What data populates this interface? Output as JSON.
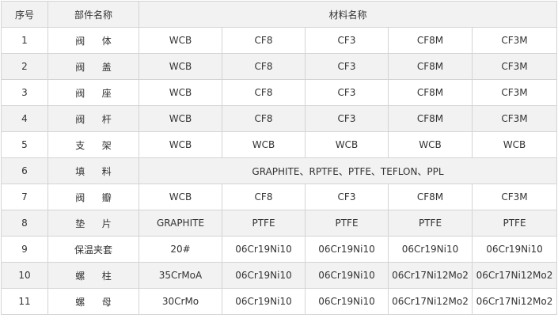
{
  "table": {
    "header": [
      "序号",
      "部件名称",
      "材料名称"
    ],
    "rows": [
      [
        "1",
        "阀体",
        "WCB",
        "CF8",
        "CF3",
        "CF8M",
        "CF3M"
      ],
      [
        "2",
        "阀盖",
        "WCB",
        "CF8",
        "CF3",
        "CF8M",
        "CF3M"
      ],
      [
        "3",
        "阀座",
        "WCB",
        "CF8",
        "CF3",
        "CF8M",
        "CF3M"
      ],
      [
        "4",
        "阀杆",
        "WCB",
        "CF8",
        "CF3",
        "CF8M",
        "CF3M"
      ],
      [
        "5",
        "支架",
        "WCB",
        "WCB",
        "WCB",
        "WCB",
        "WCB"
      ],
      [
        "6",
        "填料",
        "GRAPHITE、RPTFE、PTFE、TEFLON、PPL"
      ],
      [
        "7",
        "阀瓣",
        "WCB",
        "CF8",
        "CF3",
        "CF8M",
        "CF3M"
      ],
      [
        "8",
        "垫片",
        "GRAPHITE",
        "PTFE",
        "PTFE",
        "PTFE",
        "PTFE"
      ],
      [
        "9",
        "保温夹套",
        "20#",
        "06Cr19Ni10",
        "06Cr19Ni10",
        "06Cr19Ni10",
        "06Cr19Ni10"
      ],
      [
        "10",
        "螺柱",
        "35CrMoA",
        "06Cr19Ni10",
        "06Cr19Ni10",
        "06Cr17Ni12Mo2",
        "06Cr17Ni12Mo2"
      ],
      [
        "11",
        "螺母",
        "30CrMo",
        "06Cr19Ni10",
        "06Cr19Ni10",
        "06Cr17Ni12Mo2",
        "06Cr17Ni12Mo2"
      ]
    ]
  }
}
